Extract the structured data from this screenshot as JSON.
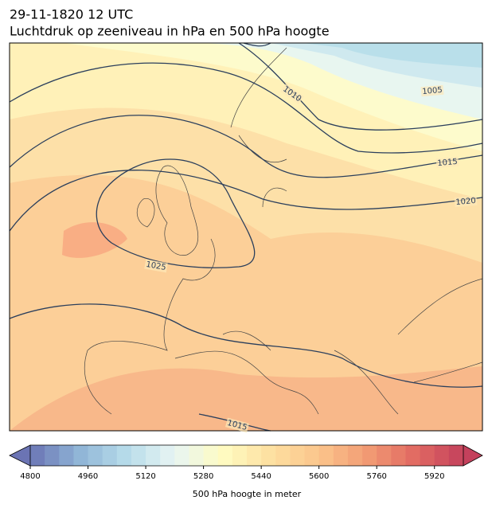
{
  "title_line1": "29-11-1820 12 UTC",
  "title_line2": "Luchtdruk op zeeniveau in hPa en 500 hPa hoogte",
  "contour_labels": [
    1010,
    1005,
    1015,
    1020,
    1025,
    1015
  ],
  "colorbar": {
    "lim": [
      4800,
      6000
    ],
    "step": 40,
    "ticks": [
      4800,
      4960,
      5120,
      5280,
      5440,
      5600,
      5760,
      5920
    ],
    "label": "500 hPa hoogte in meter",
    "colormap": [
      "#6b74b4",
      "#8fb4d6",
      "#b7dcea",
      "#e8f5f3",
      "#fffbc2",
      "#fde0a0",
      "#fbc58c",
      "#f29b74",
      "#e16a62",
      "#c4415c"
    ]
  }
}
